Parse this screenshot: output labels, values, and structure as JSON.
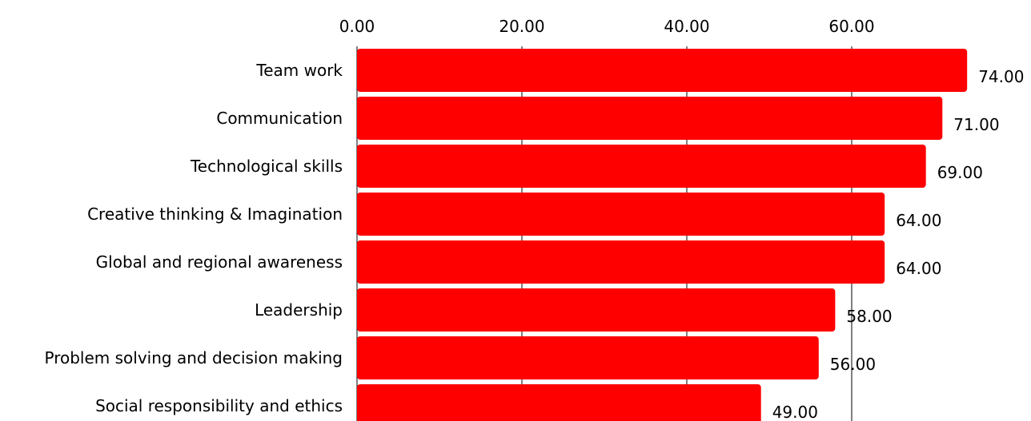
{
  "chart_data": {
    "type": "bar",
    "orientation": "horizontal",
    "categories": [
      "Team work",
      "Communication",
      "Technological skills",
      "Creative thinking & Imagination",
      "Global and regional awareness",
      "Leadership",
      "Problem solving and decision making",
      "Social responsibility and ethics"
    ],
    "values": [
      74,
      71,
      69,
      64,
      64,
      58,
      56,
      49
    ],
    "value_labels": [
      "74.00",
      "71.00",
      "69.00",
      "64.00",
      "64.00",
      "58.00",
      "56.00",
      "49.00"
    ],
    "x_ticks": [
      0,
      20,
      40,
      60
    ],
    "x_tick_labels": [
      "0.00",
      "20.00",
      "40.00",
      "60.00"
    ],
    "xlim": [
      0,
      80
    ],
    "axis_position": "top",
    "grid": true,
    "bar_color": "#ff0000",
    "grid_color": "#000000"
  }
}
